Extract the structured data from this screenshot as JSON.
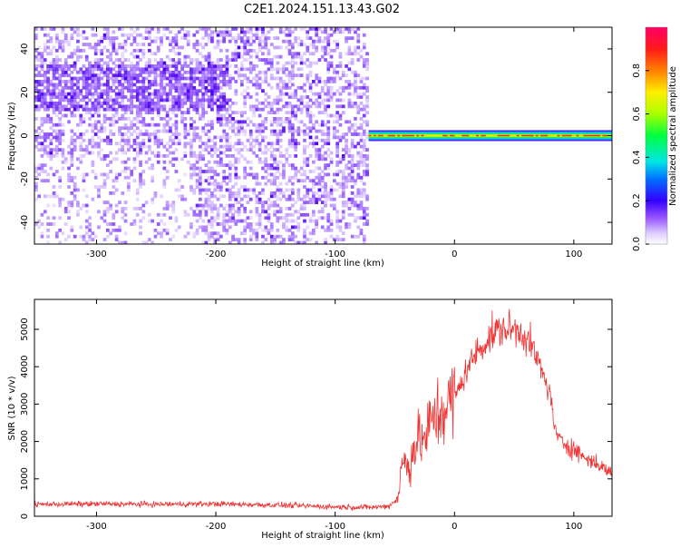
{
  "title": "C2E1.2024.151.13.43.G02",
  "chart_data": [
    {
      "type": "heatmap",
      "xlabel": "Height of straight line (km)",
      "ylabel": "Frequency (Hz)",
      "xlim": [
        -352,
        132
      ],
      "ylim": [
        -50,
        50
      ],
      "xticks": [
        -300,
        -200,
        -100,
        0,
        100
      ],
      "yticks": [
        -40,
        -20,
        0,
        20,
        40
      ],
      "colorbar": {
        "label": "Normalized spectral amplitude",
        "range": [
          0,
          1
        ],
        "ticks": [
          "0.0",
          "0.2",
          "0.4",
          "0.6",
          "0.8"
        ]
      },
      "features": {
        "noise_region_x": [
          -352,
          -72
        ],
        "carrier_region_x": [
          -72,
          132
        ],
        "carrier_frequency": 0,
        "carrier_half_width": 2.5,
        "carrier_peak_amplitude": 0.9
      }
    },
    {
      "type": "line",
      "xlabel": "Height of straight line (km)",
      "ylabel": "SNR (10 * v/v)",
      "xlim": [
        -352,
        132
      ],
      "ylim": [
        0,
        5800
      ],
      "xticks": [
        -300,
        -200,
        -100,
        0,
        100
      ],
      "yticks": [
        0,
        1000,
        2000,
        3000,
        4000,
        5000
      ],
      "color": "#ee3333",
      "series": [
        {
          "x": [
            -352,
            -300,
            -250,
            -200,
            -150,
            -100,
            -70,
            -55,
            -47,
            -45,
            -42,
            -38,
            -35,
            -30,
            -25,
            -20,
            -15,
            -10,
            -5,
            0,
            5,
            10,
            15,
            20,
            25,
            30,
            35,
            40,
            45,
            50,
            55,
            60,
            65,
            70,
            75,
            80,
            85,
            90,
            95,
            100,
            110,
            120,
            132
          ],
          "y": [
            320,
            330,
            320,
            330,
            300,
            250,
            240,
            270,
            500,
            1200,
            1500,
            1300,
            1700,
            2100,
            2000,
            2500,
            2700,
            2800,
            3000,
            3200,
            3500,
            3900,
            4200,
            4450,
            4600,
            4800,
            4950,
            5000,
            5000,
            5000,
            4950,
            4800,
            4500,
            4150,
            3700,
            3300,
            2200,
            2000,
            1900,
            1800,
            1550,
            1400,
            1150
          ]
        }
      ]
    }
  ]
}
